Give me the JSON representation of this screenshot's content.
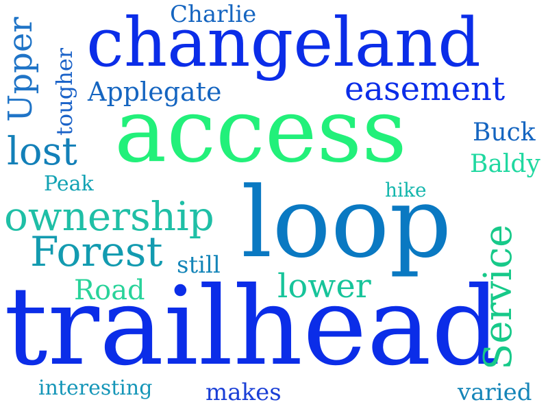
{
  "word_cloud": {
    "words": [
      {
        "text": "access",
        "color": "#22f07a"
      },
      {
        "text": "trailhead",
        "color": "#0b2de8"
      },
      {
        "text": "loop",
        "color": "#0a79c2"
      },
      {
        "text": "changeland",
        "color": "#0b2de8"
      },
      {
        "text": "easement",
        "color": "#0b2de8"
      },
      {
        "text": "Service",
        "color": "#17c989"
      },
      {
        "text": "ownership",
        "color": "#1fbfa6"
      },
      {
        "text": "Forest",
        "color": "#139bb0"
      },
      {
        "text": "lost",
        "color": "#1380b8"
      },
      {
        "text": "Upper",
        "color": "#1f74c7"
      },
      {
        "text": "Applegate",
        "color": "#1565c0"
      },
      {
        "text": "Charlie",
        "color": "#1565c0"
      },
      {
        "text": "tougher",
        "color": "#1a62c8"
      },
      {
        "text": "Buck",
        "color": "#1565c0"
      },
      {
        "text": "Baldy",
        "color": "#1fd8a0"
      },
      {
        "text": "Peak",
        "color": "#12a2b3"
      },
      {
        "text": "hike",
        "color": "#14b6ac"
      },
      {
        "text": "still",
        "color": "#1485b8"
      },
      {
        "text": "Road",
        "color": "#29d39a"
      },
      {
        "text": "lower",
        "color": "#17c49a"
      },
      {
        "text": "interesting",
        "color": "#1596b8"
      },
      {
        "text": "makes",
        "color": "#1a3fd6"
      },
      {
        "text": "varied",
        "color": "#1585b8"
      }
    ]
  }
}
